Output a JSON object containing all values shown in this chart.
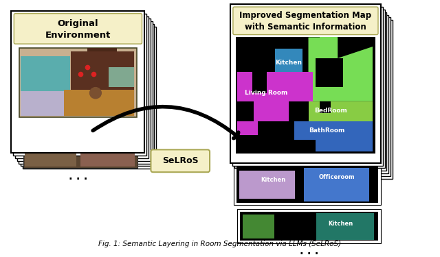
{
  "title": "Fig. 1: Semantic Layering in Room Segmentation via LLMs (SeLRoS)",
  "background_color": "#ffffff",
  "left_panel_title": "Original\nEnvironment",
  "right_panel_title": "Improved Segmentation Map\nwith Semantic Information",
  "selros_label": "SeLRoS",
  "dots": ". . .",
  "left_title_bg": "#f5f0c8",
  "right_title_bg": "#f5f0c8",
  "fp1_teal": "#5aadad",
  "fp1_lavender": "#b0a8c0",
  "fp1_brown_dark": "#6b3a28",
  "fp1_orange": "#c08020",
  "fp1_gray": "#888888",
  "fp1_brown_top": "#5a3020",
  "fp2_dark": "#6a5040",
  "fp2_medium": "#8a6550",
  "fp3_dark": "#5a3828",
  "fp3_medium": "#7a5038",
  "seg1_black": "#000000",
  "seg1_green": "#77dd55",
  "seg1_blue_kitchen": "#3388bb",
  "seg1_purple": "#cc33cc",
  "seg1_green2": "#88cc44",
  "seg1_blue_bath": "#3366bb",
  "seg2_lavender": "#bb99cc",
  "seg2_blue": "#4477cc",
  "seg3_green": "#448833",
  "seg3_teal": "#227766"
}
